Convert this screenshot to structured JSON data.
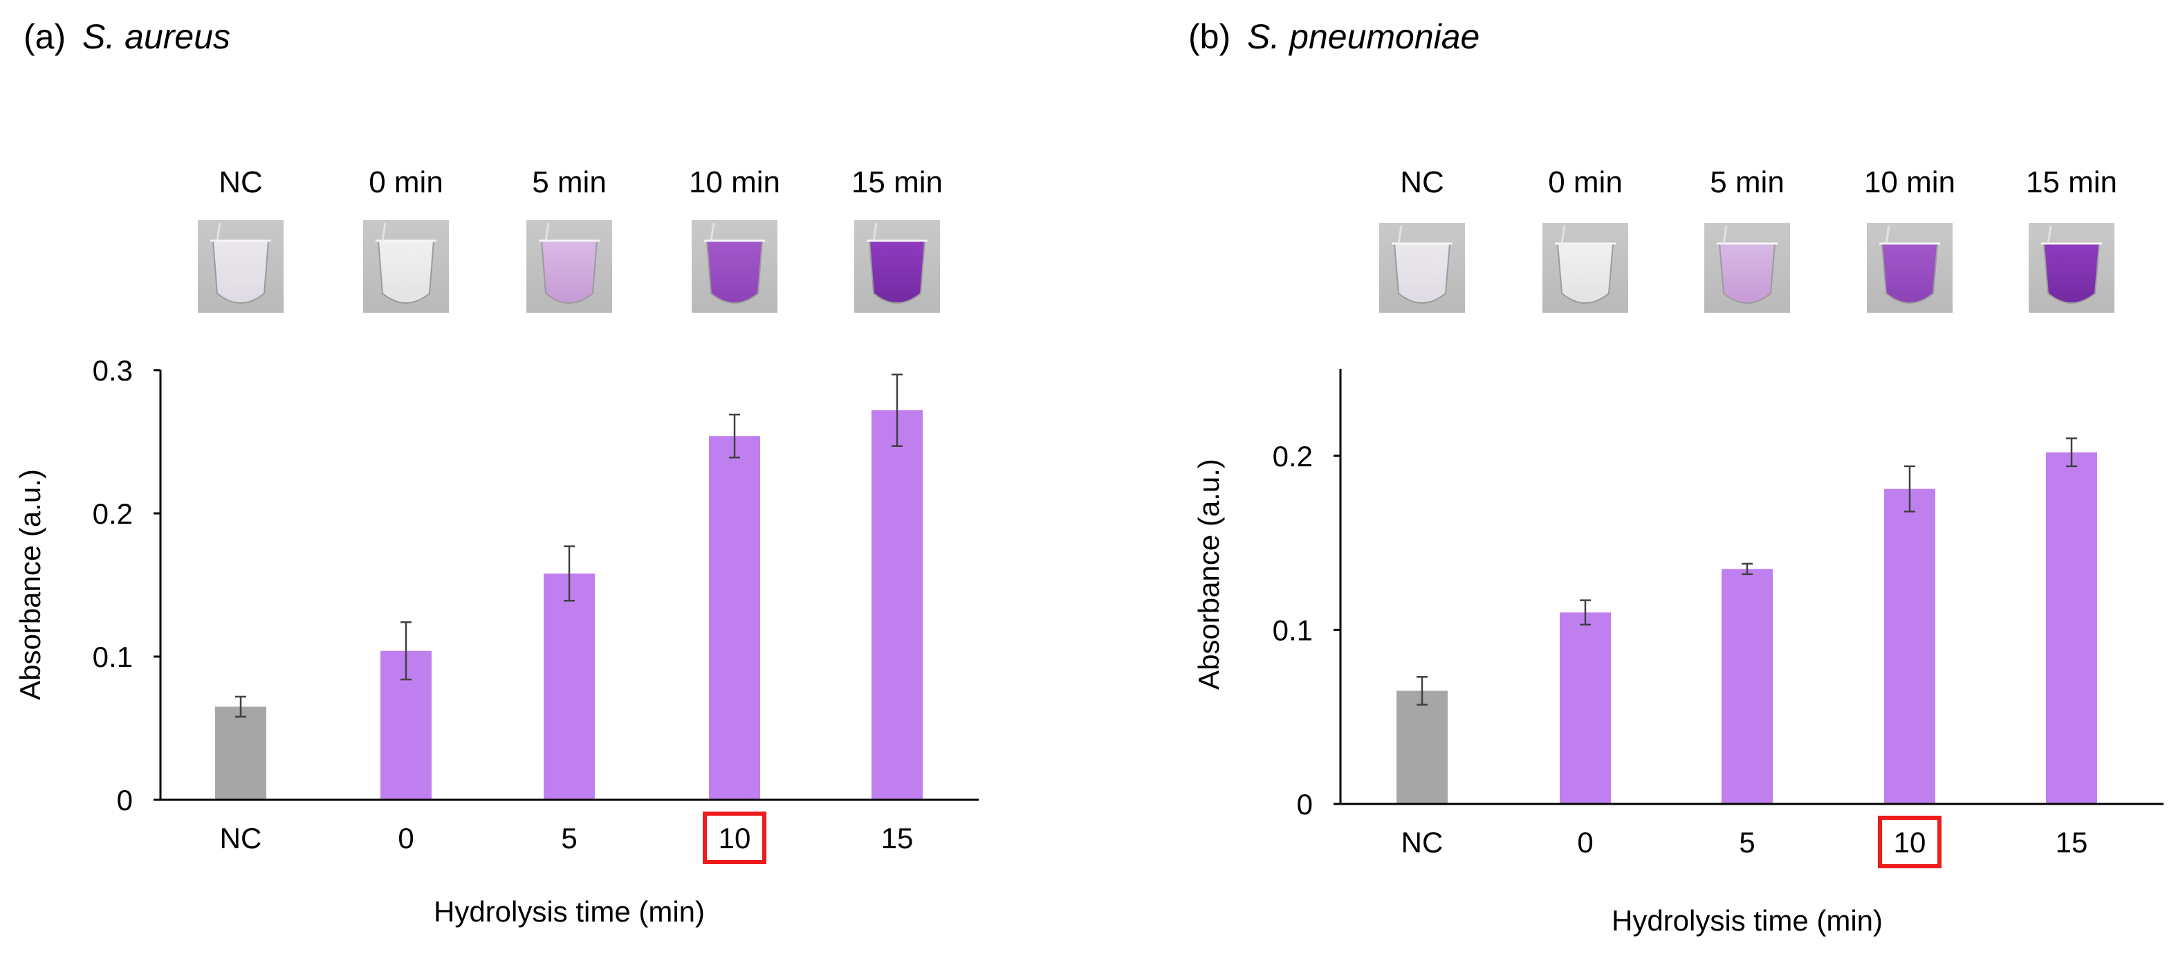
{
  "figure": {
    "panel_a": {
      "prefix": "(a)",
      "organism": "S. aureus"
    },
    "panel_b": {
      "prefix": "(b)",
      "organism": "S. pneumoniae"
    }
  },
  "colors": {
    "control_bar": "#a6a6a6",
    "sample_bar": "#c07fee",
    "highlight_box": "#ee1c1c",
    "axis": "#000000",
    "error_bar": "#404040"
  },
  "chart_data": [
    {
      "type": "bar",
      "panel": "a",
      "title": "(a) S. aureus",
      "xlabel": "Hydrolysis time (min)",
      "ylabel": "Absorbance (a.u.)",
      "categories": [
        "NC",
        "0",
        "5",
        "10",
        "15"
      ],
      "image_labels": [
        "NC",
        "0 min",
        "5 min",
        "10 min",
        "15 min"
      ],
      "values": [
        0.065,
        0.104,
        0.158,
        0.254,
        0.272
      ],
      "errors": [
        0.007,
        0.02,
        0.019,
        0.015,
        0.025
      ],
      "bar_colors": [
        "#a6a6a6",
        "#c07fee",
        "#c07fee",
        "#c07fee",
        "#c07fee"
      ],
      "ylim": [
        0,
        0.3
      ],
      "yticks": [
        0,
        0.1,
        0.2,
        0.3
      ],
      "ytick_labels": [
        "0",
        "0.1",
        "0.2",
        "0.3"
      ],
      "highlight_category": "10",
      "grid": false
    },
    {
      "type": "bar",
      "panel": "b",
      "title": "(b) S. pneumoniae",
      "xlabel": "Hydrolysis time (min)",
      "ylabel": "Absorbance (a.u.)",
      "categories": [
        "NC",
        "0",
        "5",
        "10",
        "15"
      ],
      "image_labels": [
        "NC",
        "0 min",
        "5 min",
        "10 min",
        "15 min"
      ],
      "values": [
        0.065,
        0.11,
        0.135,
        0.181,
        0.202
      ],
      "errors": [
        0.008,
        0.007,
        0.003,
        0.013,
        0.008
      ],
      "bar_colors": [
        "#a6a6a6",
        "#c07fee",
        "#c07fee",
        "#c07fee",
        "#c07fee"
      ],
      "ylim": [
        0,
        0.25
      ],
      "yticks": [
        0,
        0.1,
        0.2
      ],
      "ytick_labels": [
        "0",
        "0.1",
        "0.2"
      ],
      "highlight_category": "10",
      "grid": false
    }
  ]
}
